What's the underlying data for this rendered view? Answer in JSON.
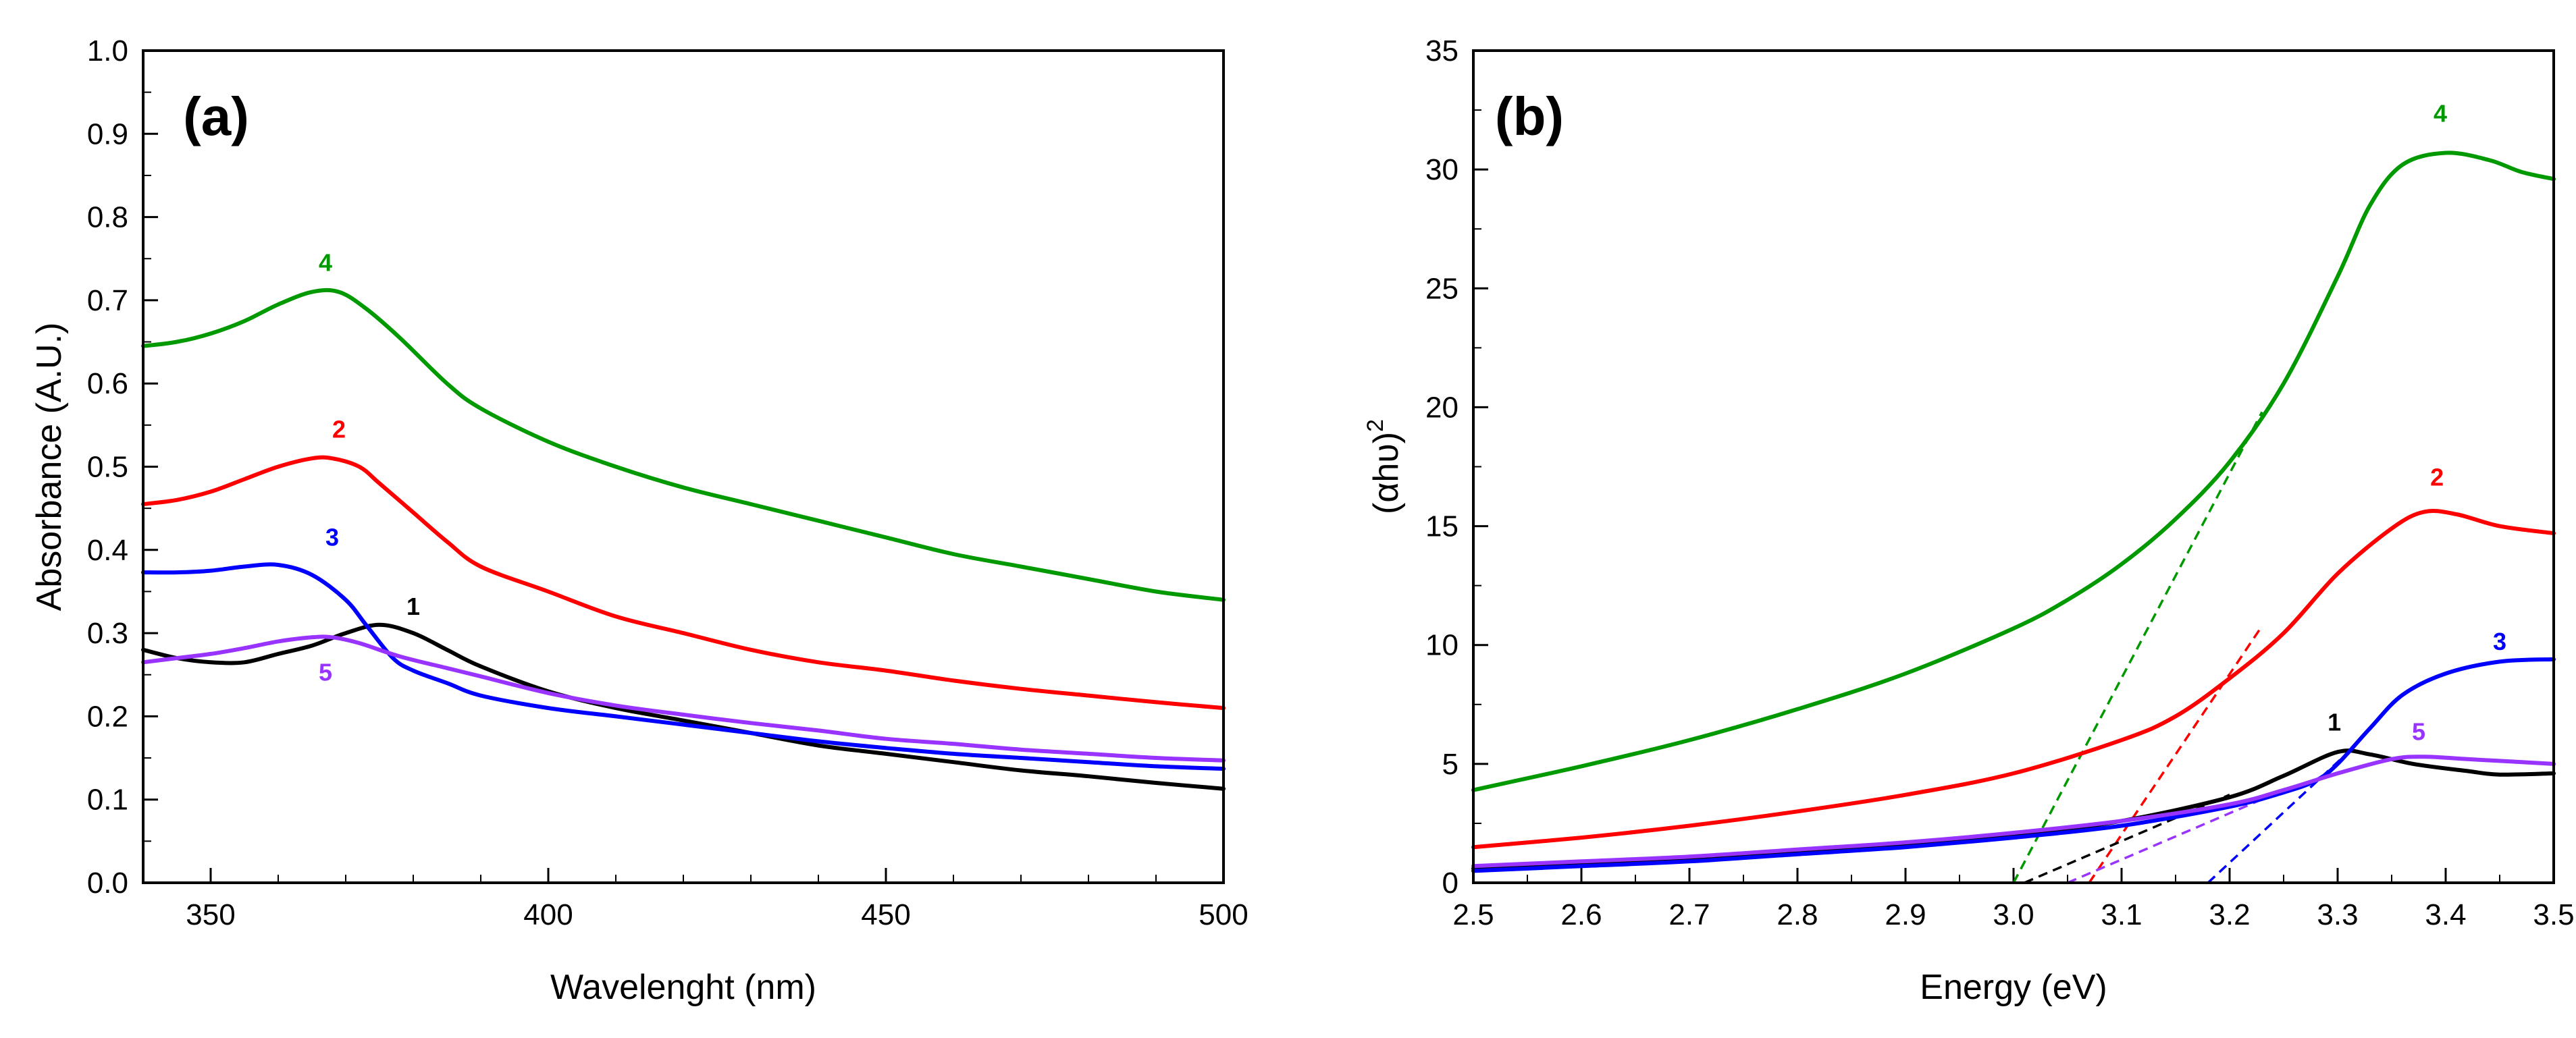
{
  "chart_data": [
    {
      "type": "line",
      "panel_label": "(a)",
      "xlabel": "Wavelenght (nm)",
      "ylabel": "Absorbance (A.U.)",
      "xlim": [
        340,
        500
      ],
      "ylim": [
        0.0,
        1.0
      ],
      "x_ticks": [
        350,
        400,
        450,
        500
      ],
      "y_ticks": [
        0.0,
        0.1,
        0.2,
        0.3,
        0.4,
        0.5,
        0.6,
        0.7,
        0.8,
        0.9,
        1.0
      ],
      "x_tick_labels": [
        "350",
        "400",
        "450",
        "500"
      ],
      "y_tick_labels": [
        "0.0",
        "0.1",
        "0.2",
        "0.3",
        "0.4",
        "0.5",
        "0.6",
        "0.7",
        "0.8",
        "0.9",
        "1.0"
      ],
      "series": [
        {
          "name": "1",
          "color": "#000000",
          "points": [
            [
              340,
              0.28
            ],
            [
              345,
              0.27
            ],
            [
              350,
              0.265
            ],
            [
              355,
              0.265
            ],
            [
              360,
              0.275
            ],
            [
              365,
              0.285
            ],
            [
              370,
              0.3
            ],
            [
              375,
              0.31
            ],
            [
              380,
              0.3
            ],
            [
              385,
              0.28
            ],
            [
              390,
              0.26
            ],
            [
              400,
              0.23
            ],
            [
              410,
              0.21
            ],
            [
              420,
              0.195
            ],
            [
              430,
              0.18
            ],
            [
              440,
              0.165
            ],
            [
              450,
              0.155
            ],
            [
              460,
              0.145
            ],
            [
              470,
              0.135
            ],
            [
              480,
              0.128
            ],
            [
              490,
              0.12
            ],
            [
              500,
              0.113
            ]
          ]
        },
        {
          "name": "2",
          "color": "#ff0000",
          "points": [
            [
              340,
              0.455
            ],
            [
              345,
              0.46
            ],
            [
              350,
              0.47
            ],
            [
              355,
              0.485
            ],
            [
              360,
              0.5
            ],
            [
              365,
              0.51
            ],
            [
              368,
              0.51
            ],
            [
              372,
              0.5
            ],
            [
              375,
              0.48
            ],
            [
              380,
              0.445
            ],
            [
              385,
              0.41
            ],
            [
              390,
              0.38
            ],
            [
              400,
              0.35
            ],
            [
              410,
              0.32
            ],
            [
              420,
              0.3
            ],
            [
              430,
              0.28
            ],
            [
              440,
              0.265
            ],
            [
              450,
              0.255
            ],
            [
              460,
              0.243
            ],
            [
              470,
              0.233
            ],
            [
              480,
              0.225
            ],
            [
              490,
              0.217
            ],
            [
              500,
              0.21
            ]
          ]
        },
        {
          "name": "3",
          "color": "#0000ff",
          "points": [
            [
              340,
              0.373
            ],
            [
              345,
              0.373
            ],
            [
              350,
              0.375
            ],
            [
              355,
              0.38
            ],
            [
              360,
              0.382
            ],
            [
              365,
              0.37
            ],
            [
              370,
              0.34
            ],
            [
              373,
              0.31
            ],
            [
              377,
              0.27
            ],
            [
              380,
              0.255
            ],
            [
              385,
              0.24
            ],
            [
              390,
              0.225
            ],
            [
              400,
              0.21
            ],
            [
              410,
              0.2
            ],
            [
              420,
              0.19
            ],
            [
              430,
              0.18
            ],
            [
              440,
              0.17
            ],
            [
              450,
              0.162
            ],
            [
              460,
              0.155
            ],
            [
              470,
              0.15
            ],
            [
              480,
              0.145
            ],
            [
              490,
              0.14
            ],
            [
              500,
              0.137
            ]
          ]
        },
        {
          "name": "4",
          "color": "#009900",
          "points": [
            [
              340,
              0.645
            ],
            [
              345,
              0.65
            ],
            [
              350,
              0.66
            ],
            [
              355,
              0.675
            ],
            [
              360,
              0.695
            ],
            [
              365,
              0.71
            ],
            [
              369,
              0.71
            ],
            [
              373,
              0.69
            ],
            [
              378,
              0.655
            ],
            [
              385,
              0.6
            ],
            [
              390,
              0.57
            ],
            [
              400,
              0.53
            ],
            [
              410,
              0.5
            ],
            [
              420,
              0.475
            ],
            [
              430,
              0.455
            ],
            [
              440,
              0.435
            ],
            [
              450,
              0.415
            ],
            [
              460,
              0.395
            ],
            [
              470,
              0.38
            ],
            [
              480,
              0.365
            ],
            [
              490,
              0.35
            ],
            [
              500,
              0.34
            ]
          ]
        },
        {
          "name": "5",
          "color": "#9933ff",
          "points": [
            [
              340,
              0.265
            ],
            [
              345,
              0.27
            ],
            [
              350,
              0.275
            ],
            [
              355,
              0.282
            ],
            [
              360,
              0.29
            ],
            [
              365,
              0.295
            ],
            [
              368,
              0.295
            ],
            [
              372,
              0.288
            ],
            [
              378,
              0.272
            ],
            [
              385,
              0.258
            ],
            [
              390,
              0.248
            ],
            [
              400,
              0.228
            ],
            [
              410,
              0.213
            ],
            [
              420,
              0.202
            ],
            [
              430,
              0.192
            ],
            [
              440,
              0.183
            ],
            [
              450,
              0.173
            ],
            [
              460,
              0.167
            ],
            [
              470,
              0.16
            ],
            [
              480,
              0.155
            ],
            [
              490,
              0.15
            ],
            [
              500,
              0.147
            ]
          ]
        }
      ],
      "annotations": [
        {
          "text": "4",
          "x": 367,
          "y": 0.735,
          "color": "#009900"
        },
        {
          "text": "2",
          "x": 369,
          "y": 0.535,
          "color": "#ff0000"
        },
        {
          "text": "3",
          "x": 368,
          "y": 0.405,
          "color": "#0000ff"
        },
        {
          "text": "1",
          "x": 380,
          "y": 0.322,
          "color": "#000000"
        },
        {
          "text": "5",
          "x": 367,
          "y": 0.243,
          "color": "#9933ff"
        }
      ]
    },
    {
      "type": "line",
      "panel_label": "(b)",
      "xlabel": "Energy (eV)",
      "ylabel": "(αhυ)",
      "ylabel_superscript": "2",
      "xlim": [
        2.5,
        3.5
      ],
      "ylim": [
        0,
        35
      ],
      "x_ticks": [
        2.5,
        2.6,
        2.7,
        2.8,
        2.9,
        3.0,
        3.1,
        3.2,
        3.3,
        3.4,
        3.5
      ],
      "y_ticks": [
        0,
        5,
        10,
        15,
        20,
        25,
        30,
        35
      ],
      "x_tick_labels": [
        "2.5",
        "2.6",
        "2.7",
        "2.8",
        "2.9",
        "3.0",
        "3.1",
        "3.2",
        "3.3",
        "3.4",
        "3.5"
      ],
      "y_tick_labels": [
        "0",
        "5",
        "10",
        "15",
        "20",
        "25",
        "30",
        "35"
      ],
      "series": [
        {
          "name": "1",
          "color": "#000000",
          "points": [
            [
              2.5,
              0.6
            ],
            [
              2.6,
              0.8
            ],
            [
              2.7,
              1.0
            ],
            [
              2.8,
              1.3
            ],
            [
              2.9,
              1.6
            ],
            [
              3.0,
              2.0
            ],
            [
              3.1,
              2.6
            ],
            [
              3.2,
              3.6
            ],
            [
              3.25,
              4.5
            ],
            [
              3.3,
              5.5
            ],
            [
              3.33,
              5.4
            ],
            [
              3.37,
              5.0
            ],
            [
              3.42,
              4.7
            ],
            [
              3.45,
              4.55
            ],
            [
              3.5,
              4.6
            ]
          ]
        },
        {
          "name": "2",
          "color": "#ff0000",
          "points": [
            [
              2.5,
              1.5
            ],
            [
              2.6,
              1.9
            ],
            [
              2.7,
              2.4
            ],
            [
              2.8,
              3.0
            ],
            [
              2.9,
              3.7
            ],
            [
              3.0,
              4.6
            ],
            [
              3.1,
              6.0
            ],
            [
              3.15,
              7.0
            ],
            [
              3.2,
              8.6
            ],
            [
              3.25,
              10.5
            ],
            [
              3.3,
              13.0
            ],
            [
              3.35,
              14.9
            ],
            [
              3.38,
              15.6
            ],
            [
              3.41,
              15.5
            ],
            [
              3.45,
              15.0
            ],
            [
              3.5,
              14.7
            ]
          ]
        },
        {
          "name": "3",
          "color": "#0000ff",
          "points": [
            [
              2.5,
              0.5
            ],
            [
              2.6,
              0.7
            ],
            [
              2.7,
              0.9
            ],
            [
              2.8,
              1.2
            ],
            [
              2.9,
              1.5
            ],
            [
              3.0,
              1.9
            ],
            [
              3.1,
              2.4
            ],
            [
              3.2,
              3.2
            ],
            [
              3.25,
              3.8
            ],
            [
              3.28,
              4.3
            ],
            [
              3.3,
              5.0
            ],
            [
              3.33,
              6.5
            ],
            [
              3.36,
              7.9
            ],
            [
              3.4,
              8.8
            ],
            [
              3.45,
              9.3
            ],
            [
              3.5,
              9.4
            ]
          ]
        },
        {
          "name": "4",
          "color": "#009900",
          "points": [
            [
              2.5,
              3.9
            ],
            [
              2.6,
              4.9
            ],
            [
              2.7,
              6.0
            ],
            [
              2.8,
              7.3
            ],
            [
              2.9,
              8.8
            ],
            [
              3.0,
              10.7
            ],
            [
              3.05,
              11.9
            ],
            [
              3.1,
              13.4
            ],
            [
              3.15,
              15.3
            ],
            [
              3.2,
              17.7
            ],
            [
              3.25,
              21.0
            ],
            [
              3.3,
              25.5
            ],
            [
              3.33,
              28.5
            ],
            [
              3.36,
              30.2
            ],
            [
              3.4,
              30.7
            ],
            [
              3.44,
              30.4
            ],
            [
              3.47,
              29.9
            ],
            [
              3.5,
              29.6
            ]
          ]
        },
        {
          "name": "5",
          "color": "#9933ff",
          "points": [
            [
              2.5,
              0.7
            ],
            [
              2.6,
              0.9
            ],
            [
              2.7,
              1.1
            ],
            [
              2.8,
              1.4
            ],
            [
              2.9,
              1.7
            ],
            [
              3.0,
              2.1
            ],
            [
              3.1,
              2.6
            ],
            [
              3.2,
              3.3
            ],
            [
              3.25,
              3.9
            ],
            [
              3.3,
              4.6
            ],
            [
              3.35,
              5.2
            ],
            [
              3.38,
              5.3
            ],
            [
              3.42,
              5.2
            ],
            [
              3.46,
              5.1
            ],
            [
              3.5,
              5.0
            ]
          ]
        }
      ],
      "tangents": [
        {
          "series": "4",
          "color": "#009900",
          "x0": 3.0,
          "y0": 0,
          "x1": 3.23,
          "y1": 19.8
        },
        {
          "series": "2",
          "color": "#ff0000",
          "x0": 3.07,
          "y0": 0,
          "x1": 3.23,
          "y1": 10.8
        },
        {
          "series": "1",
          "color": "#000000",
          "x0": 3.01,
          "y0": 0,
          "x1": 3.2,
          "y1": 3.7
        },
        {
          "series": "5",
          "color": "#9933ff",
          "x0": 3.05,
          "y0": 0,
          "x1": 3.25,
          "y1": 3.9
        },
        {
          "series": "3",
          "color": "#0000ff",
          "x0": 3.18,
          "y0": 0,
          "x1": 3.31,
          "y1": 5.5
        }
      ],
      "annotations": [
        {
          "text": "4",
          "x": 3.395,
          "y": 32.0,
          "color": "#009900"
        },
        {
          "text": "2",
          "x": 3.392,
          "y": 16.7,
          "color": "#ff0000"
        },
        {
          "text": "3",
          "x": 3.45,
          "y": 9.8,
          "color": "#0000ff"
        },
        {
          "text": "1",
          "x": 3.297,
          "y": 6.4,
          "color": "#000000"
        },
        {
          "text": "5",
          "x": 3.375,
          "y": 6.0,
          "color": "#9933ff"
        }
      ]
    }
  ]
}
